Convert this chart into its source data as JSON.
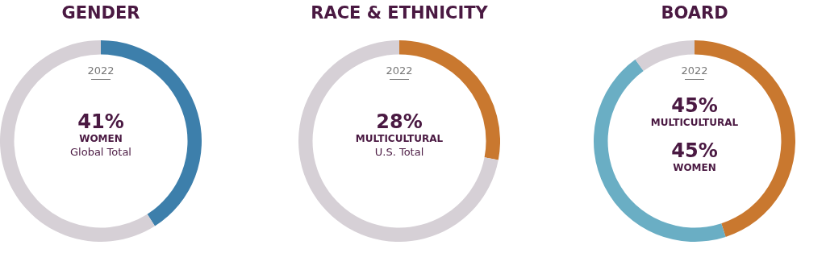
{
  "chart_data": [
    {
      "type": "donut",
      "title": "GENDER",
      "categories": [
        "WOMEN",
        null
      ],
      "values": [
        41,
        59
      ],
      "colors": [
        "#3d7fab",
        "#d6d0d6"
      ],
      "value_labels": [
        "41%",
        null
      ],
      "annotations": [
        "2022",
        "Global Total"
      ],
      "legend": false
    },
    {
      "type": "donut",
      "title": "RACE & ETHNICITY",
      "categories": [
        "MULTICULTURAL",
        null
      ],
      "values": [
        28,
        72
      ],
      "colors": [
        "#c9782f",
        "#d6d0d6"
      ],
      "value_labels": [
        "28%",
        null
      ],
      "annotations": [
        "2022",
        "U.S. Total"
      ],
      "legend": false
    },
    {
      "type": "donut",
      "title": "BOARD",
      "categories": [
        "MULTICULTURAL",
        "WOMEN",
        null
      ],
      "values": [
        45,
        45,
        10
      ],
      "colors": [
        "#c9782f",
        "#6aaec4",
        "#d6d0d6"
      ],
      "value_labels": [
        "45%",
        "45%",
        null
      ],
      "annotations": [
        "2022"
      ],
      "legend": false
    }
  ]
}
